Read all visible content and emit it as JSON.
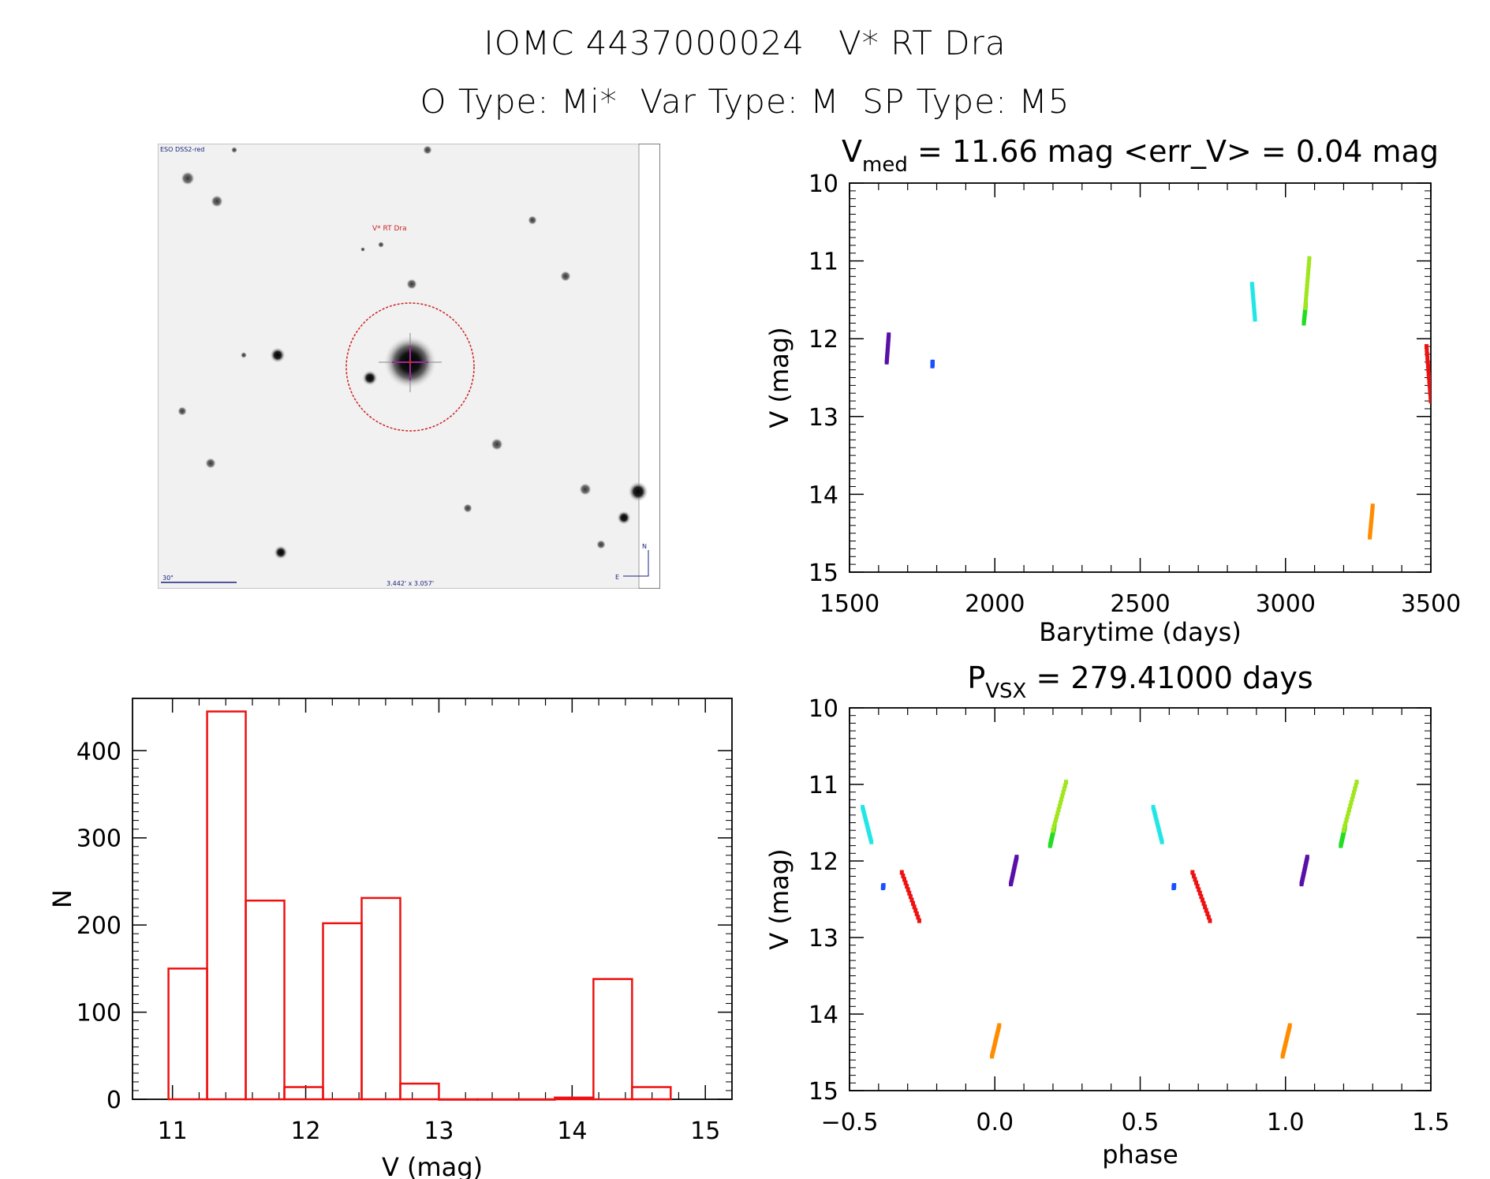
{
  "header": {
    "title_line1": "IOMC 4437000024   V* RT Dra",
    "title_line2": "O Type: Mi*  Var Type: M  SP Type: M5"
  },
  "finder": {
    "survey_label": "ESO DSS2-red",
    "target_label": "V* RT Dra",
    "scale_label": "30\"",
    "fov_label": "3.442' x 3.057'",
    "north_label": "N",
    "east_label": "E",
    "colors": {
      "survey": "#1a237e",
      "target": "#cc2222",
      "cross": "#9b2a9b"
    }
  },
  "chart_data": [
    {
      "id": "lightcurve",
      "type": "scatter",
      "title_main": "V",
      "title_sub": "med",
      "title_rest": " = 11.66 mag <err_V> = 0.04 mag",
      "xlabel": "Barytime (days)",
      "ylabel": "V (mag)",
      "xlim": [
        1500,
        3500
      ],
      "ylim": [
        10,
        15
      ],
      "y_reversed": true,
      "xticks": [
        1500,
        2000,
        2500,
        3000,
        3500
      ],
      "yticks": [
        10,
        11,
        12,
        13,
        14,
        15
      ],
      "segments": [
        {
          "color": "#5a0fa8",
          "x0": 1628,
          "y0": 12.3,
          "x1": 1635,
          "y1": 11.95
        },
        {
          "color": "#1c4fff",
          "x0": 1785,
          "y0": 12.35,
          "x1": 1786,
          "y1": 12.3
        },
        {
          "color": "#22e6e6",
          "x0": 2885,
          "y0": 11.3,
          "x1": 2895,
          "y1": 11.75
        },
        {
          "color": "#22dd22",
          "x0": 3063,
          "y0": 11.8,
          "x1": 3070,
          "y1": 11.55
        },
        {
          "color": "#a0e61c",
          "x0": 3068,
          "y0": 11.6,
          "x1": 3082,
          "y1": 10.97
        },
        {
          "color": "#ff8c00",
          "x0": 3290,
          "y0": 14.55,
          "x1": 3300,
          "y1": 14.15
        },
        {
          "color": "#ee1111",
          "x0": 3485,
          "y0": 12.1,
          "x1": 3500,
          "y1": 12.8
        }
      ]
    },
    {
      "id": "phased",
      "type": "scatter",
      "title_main": "P",
      "title_sub": "VSX",
      "title_rest": " = 279.41000 days",
      "xlabel": "phase",
      "ylabel": "V (mag)",
      "xlim": [
        -0.5,
        1.5
      ],
      "ylim": [
        10,
        15
      ],
      "y_reversed": true,
      "xticks": [
        -0.5,
        0.0,
        0.5,
        1.0,
        1.5
      ],
      "xtick_labels": [
        "−0.5",
        "0.0",
        "0.5",
        "1.0",
        "1.5"
      ],
      "yticks": [
        10,
        11,
        12,
        13,
        14,
        15
      ],
      "segments": [
        {
          "color": "#22e6e6",
          "x0": -0.455,
          "y0": 11.3,
          "x1": -0.425,
          "y1": 11.75
        },
        {
          "color": "#1c4fff",
          "x0": -0.385,
          "y0": 12.35,
          "x1": -0.383,
          "y1": 12.32
        },
        {
          "color": "#ee1111",
          "x0": -0.32,
          "y0": 12.15,
          "x1": -0.26,
          "y1": 12.78
        },
        {
          "color": "#ff8c00",
          "x0": -0.01,
          "y0": 14.55,
          "x1": 0.015,
          "y1": 14.15
        },
        {
          "color": "#5a0fa8",
          "x0": 0.055,
          "y0": 12.3,
          "x1": 0.075,
          "y1": 11.95
        },
        {
          "color": "#22dd22",
          "x0": 0.19,
          "y0": 11.8,
          "x1": 0.205,
          "y1": 11.55
        },
        {
          "color": "#a0e61c",
          "x0": 0.2,
          "y0": 11.6,
          "x1": 0.245,
          "y1": 10.97
        },
        {
          "color": "#22e6e6",
          "x0": 0.545,
          "y0": 11.3,
          "x1": 0.575,
          "y1": 11.75
        },
        {
          "color": "#1c4fff",
          "x0": 0.615,
          "y0": 12.35,
          "x1": 0.617,
          "y1": 12.32
        },
        {
          "color": "#ee1111",
          "x0": 0.68,
          "y0": 12.15,
          "x1": 0.74,
          "y1": 12.78
        },
        {
          "color": "#ff8c00",
          "x0": 0.99,
          "y0": 14.55,
          "x1": 1.015,
          "y1": 14.15
        },
        {
          "color": "#5a0fa8",
          "x0": 1.055,
          "y0": 12.3,
          "x1": 1.075,
          "y1": 11.95
        },
        {
          "color": "#22dd22",
          "x0": 1.19,
          "y0": 11.8,
          "x1": 1.205,
          "y1": 11.55
        },
        {
          "color": "#a0e61c",
          "x0": 1.2,
          "y0": 11.6,
          "x1": 1.245,
          "y1": 10.97
        }
      ]
    },
    {
      "id": "histogram",
      "type": "bar",
      "xlabel": "V (mag)",
      "ylabel": "N",
      "xlim": [
        10.7,
        15.2
      ],
      "ylim": [
        0,
        460
      ],
      "xticks": [
        11,
        12,
        13,
        14,
        15
      ],
      "yticks": [
        0,
        100,
        200,
        300,
        400
      ],
      "color": "#ee1111",
      "bins": [
        {
          "x0": 10.97,
          "x1": 11.26,
          "n": 150
        },
        {
          "x0": 11.26,
          "x1": 11.55,
          "n": 445
        },
        {
          "x0": 11.55,
          "x1": 11.84,
          "n": 228
        },
        {
          "x0": 11.84,
          "x1": 12.13,
          "n": 14
        },
        {
          "x0": 12.13,
          "x1": 12.42,
          "n": 202
        },
        {
          "x0": 12.42,
          "x1": 12.71,
          "n": 231
        },
        {
          "x0": 12.71,
          "x1": 13.0,
          "n": 18
        },
        {
          "x0": 13.0,
          "x1": 13.29,
          "n": 0
        },
        {
          "x0": 13.29,
          "x1": 13.58,
          "n": 0
        },
        {
          "x0": 13.58,
          "x1": 13.87,
          "n": 0
        },
        {
          "x0": 13.87,
          "x1": 14.16,
          "n": 2
        },
        {
          "x0": 14.16,
          "x1": 14.45,
          "n": 138
        },
        {
          "x0": 14.45,
          "x1": 14.74,
          "n": 14
        }
      ]
    }
  ]
}
